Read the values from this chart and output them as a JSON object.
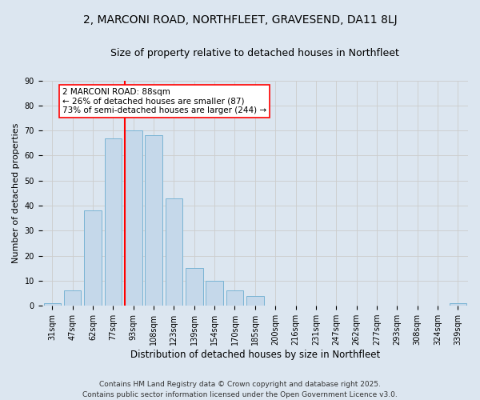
{
  "title": "2, MARCONI ROAD, NORTHFLEET, GRAVESEND, DA11 8LJ",
  "subtitle": "Size of property relative to detached houses in Northfleet",
  "xlabel": "Distribution of detached houses by size in Northfleet",
  "ylabel": "Number of detached properties",
  "bin_labels": [
    "31sqm",
    "47sqm",
    "62sqm",
    "77sqm",
    "93sqm",
    "108sqm",
    "123sqm",
    "139sqm",
    "154sqm",
    "170sqm",
    "185sqm",
    "200sqm",
    "216sqm",
    "231sqm",
    "247sqm",
    "262sqm",
    "277sqm",
    "293sqm",
    "308sqm",
    "324sqm",
    "339sqm"
  ],
  "bar_heights": [
    1,
    6,
    38,
    67,
    70,
    68,
    43,
    15,
    10,
    6,
    4,
    0,
    0,
    0,
    0,
    0,
    0,
    0,
    0,
    0,
    1
  ],
  "bar_color": "#c5d8ea",
  "bar_edgecolor": "#7ab4d4",
  "vline_bin_index": 4,
  "vline_color": "red",
  "annotation_text": "2 MARCONI ROAD: 88sqm\n← 26% of detached houses are smaller (87)\n73% of semi-detached houses are larger (244) →",
  "annotation_box_edgecolor": "red",
  "annotation_box_facecolor": "white",
  "ylim": [
    0,
    90
  ],
  "yticks": [
    0,
    10,
    20,
    30,
    40,
    50,
    60,
    70,
    80,
    90
  ],
  "grid_color": "#cccccc",
  "bg_color": "#dce6f0",
  "footer": "Contains HM Land Registry data © Crown copyright and database right 2025.\nContains public sector information licensed under the Open Government Licence v3.0.",
  "title_fontsize": 10,
  "subtitle_fontsize": 9,
  "xlabel_fontsize": 8.5,
  "ylabel_fontsize": 8,
  "tick_fontsize": 7,
  "annotation_fontsize": 7.5,
  "footer_fontsize": 6.5
}
